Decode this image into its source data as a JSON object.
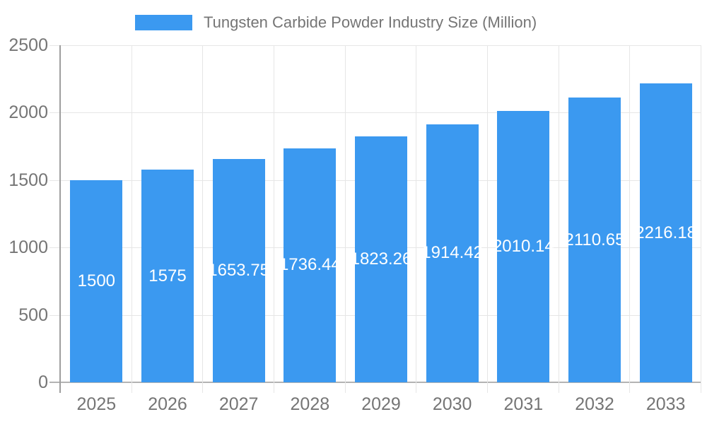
{
  "legend": {
    "label": "Tungsten Carbide Powder Industry Size (Million)"
  },
  "chart_data": {
    "type": "bar",
    "title": "Tungsten Carbide Powder Industry Size (Million)",
    "xlabel": "",
    "ylabel": "",
    "categories": [
      "2025",
      "2026",
      "2027",
      "2028",
      "2029",
      "2030",
      "2031",
      "2032",
      "2033"
    ],
    "series": [
      {
        "name": "Tungsten Carbide Powder Industry Size (Million)",
        "values": [
          1500,
          1575,
          1653.75,
          1736.44,
          1823.26,
          1914.42,
          2010.14,
          2110.65,
          2216.18
        ],
        "value_labels": [
          "1500",
          "1575",
          "1653.75",
          "1736.44",
          "1823.26",
          "1914.42",
          "2010.14",
          "2110.65",
          "2216.18"
        ]
      }
    ],
    "ylim": [
      0,
      2500
    ],
    "yticks": [
      0,
      500,
      1000,
      1500,
      2000,
      2500
    ],
    "ytick_labels": [
      "0",
      "500",
      "1000",
      "1500",
      "2000",
      "2500"
    ],
    "grid": true,
    "legend_position": "top",
    "colors": {
      "bar": "#3B99F0",
      "bar_label": "#FFFFFF",
      "axis_text": "#757575",
      "legend_text": "#757575",
      "gridline": "#E6E6E6",
      "baseline": "#B3B3B3",
      "axis_line": "#9E9E9E",
      "background": "#FFFFFF"
    }
  }
}
